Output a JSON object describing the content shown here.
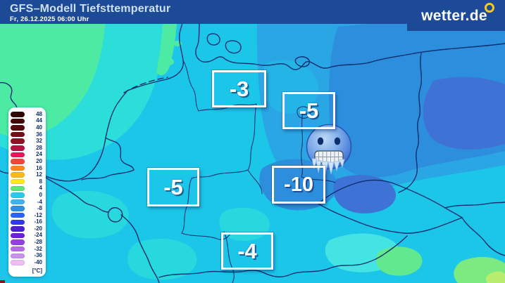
{
  "header": {
    "title": "GFS–Modell Tiefsttemperatur",
    "datetime": "Fr, 26.12.2025 06:00 Uhr",
    "bg_color": "#1d4a96"
  },
  "logo": {
    "text": "wetter.de",
    "dot_color": "#f6c81e"
  },
  "map_labels": [
    {
      "value": "-3"
    },
    {
      "value": "-5"
    },
    {
      "value": "-5"
    },
    {
      "value": "-10"
    },
    {
      "value": "-4"
    }
  ],
  "emoji": {
    "name": "cold-face"
  },
  "map_palette": {
    "sea_green": "#4deaa4",
    "turquoise": "#2cdeda",
    "cyan": "#1cc6e9",
    "light_blue": "#2aa6e4",
    "medium_blue": "#2c8edd",
    "dark_blue": "#3e72d5",
    "border_line": "#0b2e6f"
  },
  "legend": {
    "unit_label": "[°C]",
    "entries": [
      {
        "label": "48",
        "color": "#2e0504"
      },
      {
        "label": "44",
        "color": "#430707"
      },
      {
        "label": "40",
        "color": "#570a0e"
      },
      {
        "label": "36",
        "color": "#731019"
      },
      {
        "label": "32",
        "color": "#921025"
      },
      {
        "label": "28",
        "color": "#b51241"
      },
      {
        "label": "24",
        "color": "#e6175c"
      },
      {
        "label": "20",
        "color": "#f4453c"
      },
      {
        "label": "16",
        "color": "#f8891c"
      },
      {
        "label": "12",
        "color": "#fcb71a"
      },
      {
        "label": "8",
        "color": "#ffe814"
      },
      {
        "label": "4",
        "color": "#5fe677"
      },
      {
        "label": "0",
        "color": "#27cbee"
      },
      {
        "label": "-4",
        "color": "#41b2ee"
      },
      {
        "label": "-8",
        "color": "#2e8fe8"
      },
      {
        "label": "-12",
        "color": "#2a63ef"
      },
      {
        "label": "-16",
        "color": "#3238e7"
      },
      {
        "label": "-20",
        "color": "#4c1ed7"
      },
      {
        "label": "-24",
        "color": "#701fd9"
      },
      {
        "label": "-28",
        "color": "#9340e2"
      },
      {
        "label": "-32",
        "color": "#b46ae9"
      },
      {
        "label": "-36",
        "color": "#cb90ef"
      },
      {
        "label": "-40",
        "color": "#edbcf3"
      }
    ]
  }
}
